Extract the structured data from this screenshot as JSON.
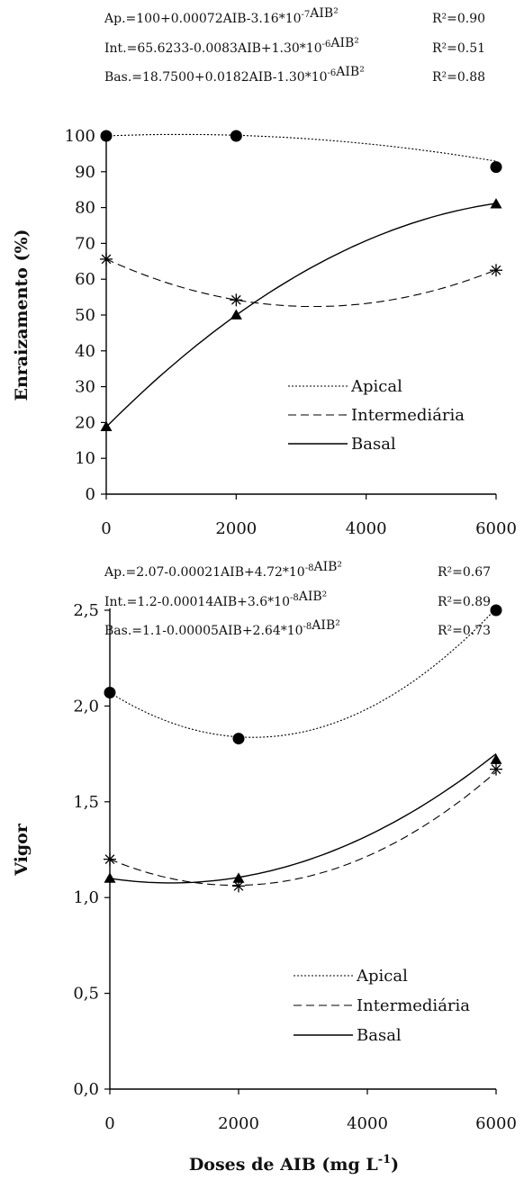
{
  "chart_data": [
    {
      "type": "line",
      "equations": [
        {
          "label": "Ap.=100+0.00072AIB-3.16*10-7AIB²",
          "r2": "R²=0.90"
        },
        {
          "label": "Int.=65.6233-0.0083AIB+1.30*10-6AIB²",
          "r2": "R²=0.51"
        },
        {
          "label": "Bas.=18.7500+0.0182AIB-1.30*10-6AIB²",
          "r2": "R²=0.88"
        }
      ],
      "ylabel": "Enraizamento (%)",
      "xlabel": "",
      "xlim": [
        0,
        6000
      ],
      "ylim": [
        0,
        100
      ],
      "x_ticks": [
        "0",
        "2000",
        "4000",
        "6000"
      ],
      "y_ticks": [
        "0",
        "10",
        "20",
        "30",
        "40",
        "50",
        "60",
        "70",
        "80",
        "90",
        "100"
      ],
      "x": [
        0,
        2000,
        6000
      ],
      "series": [
        {
          "name": "Apical",
          "marker": "circle",
          "line": "dotted",
          "values": [
            100,
            100,
            91.3
          ],
          "coef": [
            100,
            0.00072,
            -3.16e-07
          ]
        },
        {
          "name": "Intermediária",
          "marker": "asterisk",
          "line": "dashed",
          "values": [
            65.6,
            54.2,
            62.5
          ],
          "coef": [
            65.6233,
            -0.0083,
            1.3e-06
          ]
        },
        {
          "name": "Basal",
          "marker": "triangle",
          "line": "solid",
          "values": [
            18.8,
            50,
            81
          ],
          "coef": [
            18.75,
            0.0182,
            -1.3e-06
          ]
        }
      ],
      "legend": [
        "Apical",
        "Intermediária",
        "Basal"
      ],
      "legend_position": "lower-right"
    },
    {
      "type": "line",
      "equations": [
        {
          "label": "Ap.=2.07-0.00021AIB+4.72*10-8AIB²",
          "r2": "R²=0.67"
        },
        {
          "label": "Int.=1.2-0.00014AIB+3.6*10-8AIB²",
          "r2": "R²=0.89"
        },
        {
          "label": "Bas.=1.1-0.00005AIB+2.64*10-8AIB²",
          "r2": "R²=0.73"
        }
      ],
      "ylabel": "Vigor",
      "xlabel": "Doses de AIB (mg L-1)",
      "xlim": [
        0,
        6000
      ],
      "ylim": [
        0,
        2.5
      ],
      "x_ticks": [
        "0",
        "2000",
        "4000",
        "6000"
      ],
      "y_ticks": [
        "0,0",
        "0,5",
        "1,0",
        "1,5",
        "2,0",
        "2,5"
      ],
      "x": [
        0,
        2000,
        6000
      ],
      "series": [
        {
          "name": "Apical",
          "marker": "circle",
          "line": "dotted",
          "values": [
            2.07,
            1.83,
            2.5
          ],
          "coef": [
            2.07,
            -0.00021,
            4.72e-08
          ]
        },
        {
          "name": "Intermediária",
          "marker": "asterisk",
          "line": "dashed",
          "values": [
            1.2,
            1.06,
            1.67
          ],
          "coef": [
            1.2,
            -0.00014,
            3.6e-08
          ]
        },
        {
          "name": "Basal",
          "marker": "triangle",
          "line": "solid",
          "values": [
            1.1,
            1.1,
            1.72
          ],
          "coef": [
            1.1,
            -5e-05,
            2.64e-08
          ]
        }
      ],
      "legend": [
        "Apical",
        "Intermediária",
        "Basal"
      ],
      "legend_position": "lower-right"
    }
  ]
}
